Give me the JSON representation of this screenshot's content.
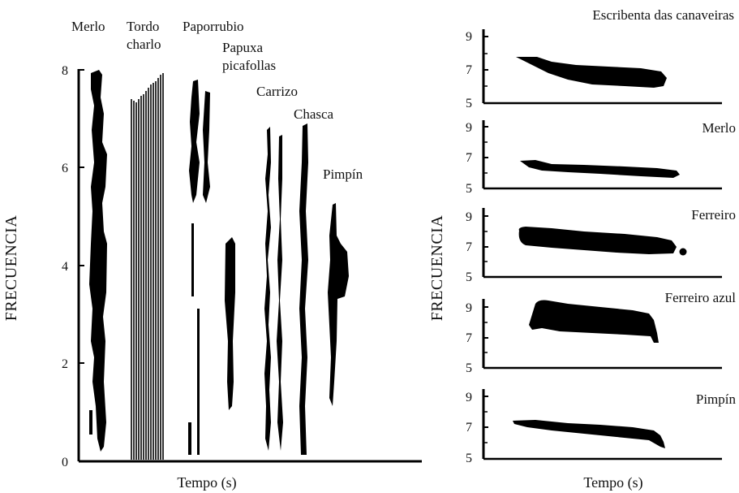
{
  "left_panel": {
    "y_axis_label": "FRECUENCIA",
    "x_axis_label": "Tempo (s)",
    "y_ticks": [
      "0",
      "2",
      "4",
      "6",
      "8"
    ],
    "species": {
      "merlo": "Merlo",
      "tordo_line1": "Tordo",
      "tordo_line2": "charlo",
      "paporrubio": "Paporrubio",
      "papuxa_line1": "Papuxa",
      "papuxa_line2": "picafollas",
      "carrizo": "Carrizo",
      "chasca": "Chasca",
      "pimpin": "Pimpín"
    }
  },
  "right_panel": {
    "y_axis_label": "FRECUENCIA",
    "x_axis_label": "Tempo (s)",
    "y_ticks": [
      "9",
      "7",
      "5"
    ],
    "panels": [
      {
        "label": "Escribenta das canaveiras"
      },
      {
        "label": "Merlo"
      },
      {
        "label": "Ferreiro"
      },
      {
        "label": "Ferreiro azul"
      },
      {
        "label": "Pimpín"
      }
    ]
  },
  "colors": {
    "ink": "#000000",
    "background": "#ffffff"
  }
}
